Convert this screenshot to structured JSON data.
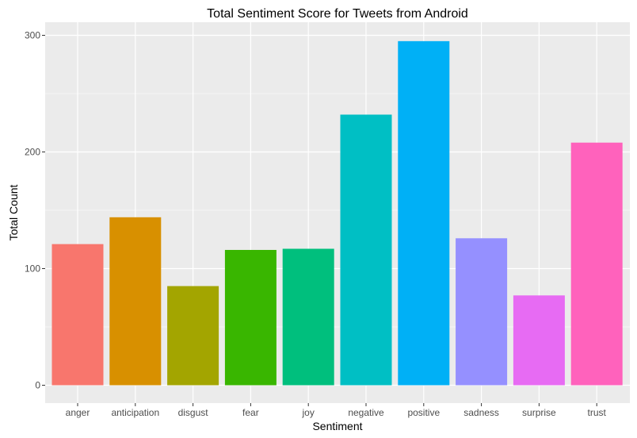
{
  "chart_data": {
    "type": "bar",
    "title": "Total Sentiment Score for Tweets from Android",
    "xlabel": "Sentiment",
    "ylabel": "Total Count",
    "categories": [
      "anger",
      "anticipation",
      "disgust",
      "fear",
      "joy",
      "negative",
      "positive",
      "sadness",
      "surprise",
      "trust"
    ],
    "values": [
      121,
      144,
      85,
      116,
      117,
      232,
      295,
      126,
      77,
      208
    ],
    "colors": [
      "#F8766D",
      "#D89000",
      "#A3A500",
      "#39B600",
      "#00BF7D",
      "#00BFC4",
      "#00B0F6",
      "#9590FF",
      "#E76BF3",
      "#FF62BC"
    ],
    "ylim": [
      0,
      300
    ],
    "yticks": [
      0,
      100,
      200,
      300
    ],
    "grid": true,
    "legend": "none",
    "panel_background": "#EBEBEB",
    "grid_color": "#FFFFFF"
  }
}
